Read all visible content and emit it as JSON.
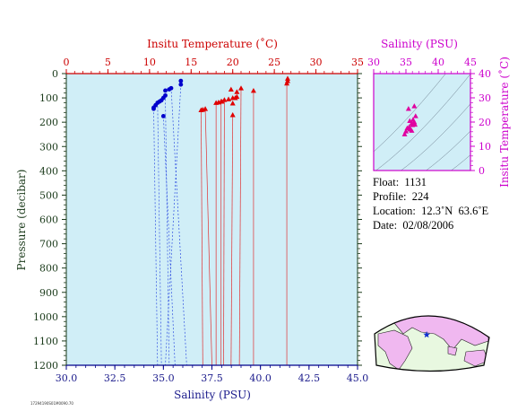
{
  "chart_data": [
    {
      "type": "scatter",
      "x_bottom_label": "Salinity (PSU)",
      "x_bottom_ticks": [
        "30.0",
        "32.5",
        "35.0",
        "37.5",
        "40.0",
        "42.5",
        "45.0"
      ],
      "x_bottom_range": [
        30,
        45
      ],
      "x_top_label": "Insitu Temperature (˚C)",
      "x_top_ticks": [
        "0",
        "5",
        "10",
        "15",
        "20",
        "25",
        "30",
        "35"
      ],
      "x_top_range": [
        0,
        35
      ],
      "y_label": "Pressure (decibar)",
      "y_ticks": [
        "0",
        "100",
        "200",
        "300",
        "400",
        "500",
        "600",
        "700",
        "800",
        "900",
        "1000",
        "1100",
        "1200"
      ],
      "y_range": [
        0,
        1200
      ],
      "y_inverted": true,
      "grid": false,
      "series": [
        {
          "variable": "temperature",
          "color": "#e00000",
          "marker": "triangle",
          "points": [
            {
              "x": 26.6,
              "y": 20
            },
            {
              "x": 26.6,
              "y": 30
            },
            {
              "x": 26.5,
              "y": 40
            },
            {
              "x": 22.5,
              "y": 70
            },
            {
              "x": 21.0,
              "y": 60
            },
            {
              "x": 20.5,
              "y": 75
            },
            {
              "x": 19.8,
              "y": 65
            },
            {
              "x": 20.5,
              "y": 95
            },
            {
              "x": 20.3,
              "y": 100
            },
            {
              "x": 20.0,
              "y": 100
            },
            {
              "x": 19.5,
              "y": 105
            },
            {
              "x": 19.0,
              "y": 108
            },
            {
              "x": 18.7,
              "y": 115
            },
            {
              "x": 18.6,
              "y": 115
            },
            {
              "x": 18.3,
              "y": 118
            },
            {
              "x": 18.0,
              "y": 120
            },
            {
              "x": 20.0,
              "y": 122
            },
            {
              "x": 20.0,
              "y": 170
            },
            {
              "x": 16.7,
              "y": 145
            },
            {
              "x": 16.4,
              "y": 148
            },
            {
              "x": 16.2,
              "y": 150
            }
          ]
        },
        {
          "variable": "salinity",
          "color": "#0000cc",
          "marker": "circle",
          "points": [
            {
              "x": 35.9,
              "y": 30
            },
            {
              "x": 35.9,
              "y": 45
            },
            {
              "x": 35.4,
              "y": 60
            },
            {
              "x": 35.3,
              "y": 65
            },
            {
              "x": 35.1,
              "y": 70
            },
            {
              "x": 35.1,
              "y": 90
            },
            {
              "x": 35.0,
              "y": 100
            },
            {
              "x": 34.9,
              "y": 110
            },
            {
              "x": 34.8,
              "y": 115
            },
            {
              "x": 34.7,
              "y": 120
            },
            {
              "x": 34.6,
              "y": 130
            },
            {
              "x": 34.5,
              "y": 140
            },
            {
              "x": 34.5,
              "y": 145
            },
            {
              "x": 35.0,
              "y": 175
            }
          ]
        }
      ],
      "deep_profile_lines": {
        "temperature": [
          {
            "x_top": 26.5,
            "y_top": 40,
            "x_bot": 26.5
          },
          {
            "x_top": 22.5,
            "y_top": 70,
            "x_bot": 22.5
          },
          {
            "x_top": 21.0,
            "y_top": 60,
            "x_bot": 20.8
          },
          {
            "x_top": 20.0,
            "y_top": 170,
            "x_bot": 19.8
          },
          {
            "x_top": 19.0,
            "y_top": 108,
            "x_bot": 18.9
          },
          {
            "x_top": 18.6,
            "y_top": 115,
            "x_bot": 18.6
          },
          {
            "x_top": 18.0,
            "y_top": 120,
            "x_bot": 18.0
          },
          {
            "x_top": 16.7,
            "y_top": 145,
            "x_bot": 17.5
          },
          {
            "x_top": 16.2,
            "y_top": 150,
            "x_bot": 16.4
          }
        ],
        "salinity": [
          {
            "x_top": 35.9,
            "y_top": 45,
            "x_bot": 35.1
          },
          {
            "x_top": 35.1,
            "y_top": 90,
            "x_bot": 35.3
          },
          {
            "x_top": 35.0,
            "y_top": 175,
            "x_bot": 35.6
          },
          {
            "x_top": 34.7,
            "y_top": 120,
            "x_bot": 34.9
          },
          {
            "x_top": 34.5,
            "y_top": 145,
            "x_bot": 34.7
          },
          {
            "x_top": 35.4,
            "y_top": 60,
            "x_bot": 36.2
          }
        ]
      }
    },
    {
      "type": "scatter",
      "x_label": "Salinity (PSU)",
      "x_ticks": [
        "30",
        "35",
        "40",
        "45"
      ],
      "x_range": [
        30,
        45
      ],
      "y_label": "Insitu Temperature (˚C)",
      "y_ticks": [
        "0",
        "10",
        "20",
        "30",
        "40"
      ],
      "y_range": [
        0,
        40
      ],
      "color": "#e000a0",
      "marker": "triangle",
      "points": [
        {
          "x": 36.3,
          "y": 26.6
        },
        {
          "x": 35.4,
          "y": 25.5
        },
        {
          "x": 36.5,
          "y": 22.5
        },
        {
          "x": 36.1,
          "y": 21.0
        },
        {
          "x": 36.3,
          "y": 20.0
        },
        {
          "x": 35.9,
          "y": 19.5
        },
        {
          "x": 36.0,
          "y": 18.8
        },
        {
          "x": 35.5,
          "y": 18.0
        },
        {
          "x": 35.6,
          "y": 17.0
        },
        {
          "x": 35.9,
          "y": 16.5
        },
        {
          "x": 35.0,
          "y": 16.2
        },
        {
          "x": 34.8,
          "y": 15.0
        },
        {
          "x": 35.6,
          "y": 20.5
        },
        {
          "x": 35.2,
          "y": 17.5
        },
        {
          "x": 36.4,
          "y": 19.0
        }
      ],
      "contour_curves": 7
    }
  ],
  "float_info": {
    "float_line": "Float:  1131",
    "profile_line": "Profile:  224",
    "location_line": "Location:  12.3˚N  63.6˚E",
    "date_line": "Date:  02/08/2006"
  },
  "map": {
    "marker_lon": 63.6,
    "marker_lat": 12.3,
    "land_color": "#f0b8f0",
    "ocean_color": "#e8f8e0"
  },
  "footer_code": "17294190S01M0090.70"
}
